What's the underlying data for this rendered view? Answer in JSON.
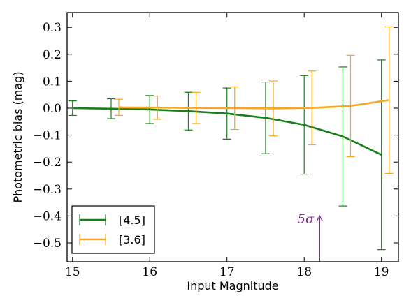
{
  "chart_data": {
    "type": "line",
    "xlabel": "Input Magnitude",
    "ylabel": "Photometric bias (mag)",
    "xlim": [
      14.93,
      19.22
    ],
    "ylim": [
      -0.57,
      0.355
    ],
    "x_ticks": [
      15,
      16,
      17,
      18,
      19
    ],
    "y_ticks": [
      0.3,
      0.2,
      0.1,
      0.0,
      -0.1,
      -0.2,
      -0.3,
      -0.4,
      -0.5
    ],
    "x_tick_labels": [
      "15",
      "16",
      "17",
      "18",
      "19"
    ],
    "y_tick_labels": [
      "0.3",
      "0.2",
      "0.1",
      "0.0",
      "−0.1",
      "−0.2",
      "−0.3",
      "−0.4",
      "−0.5"
    ],
    "grid": false,
    "legend_position": "lower-left",
    "series": [
      {
        "name": "[4.5]",
        "color": "#1a7f1a",
        "x": [
          15.0,
          15.5,
          16.0,
          16.5,
          17.0,
          17.5,
          18.0,
          18.5,
          19.0
        ],
        "y": [
          0.0,
          -0.002,
          -0.005,
          -0.011,
          -0.02,
          -0.036,
          -0.062,
          -0.105,
          -0.173
        ],
        "err": [
          0.027,
          0.037,
          0.052,
          0.07,
          0.095,
          0.133,
          0.183,
          0.258,
          0.352
        ]
      },
      {
        "name": "[3.6]",
        "color": "#f5a623",
        "x": [
          15.6,
          16.1,
          16.6,
          17.1,
          17.6,
          18.1,
          18.6,
          19.1
        ],
        "y": [
          0.003,
          0.002,
          0.001,
          0.0,
          -0.001,
          0.001,
          0.008,
          0.03
        ],
        "err": [
          0.03,
          0.043,
          0.058,
          0.079,
          0.102,
          0.137,
          0.188,
          0.272
        ]
      }
    ],
    "annotation": {
      "text": "5σ",
      "x": 18.2,
      "arrow_from_y": -0.57,
      "arrow_to_y": -0.4,
      "color": "#7b1f8c"
    }
  }
}
